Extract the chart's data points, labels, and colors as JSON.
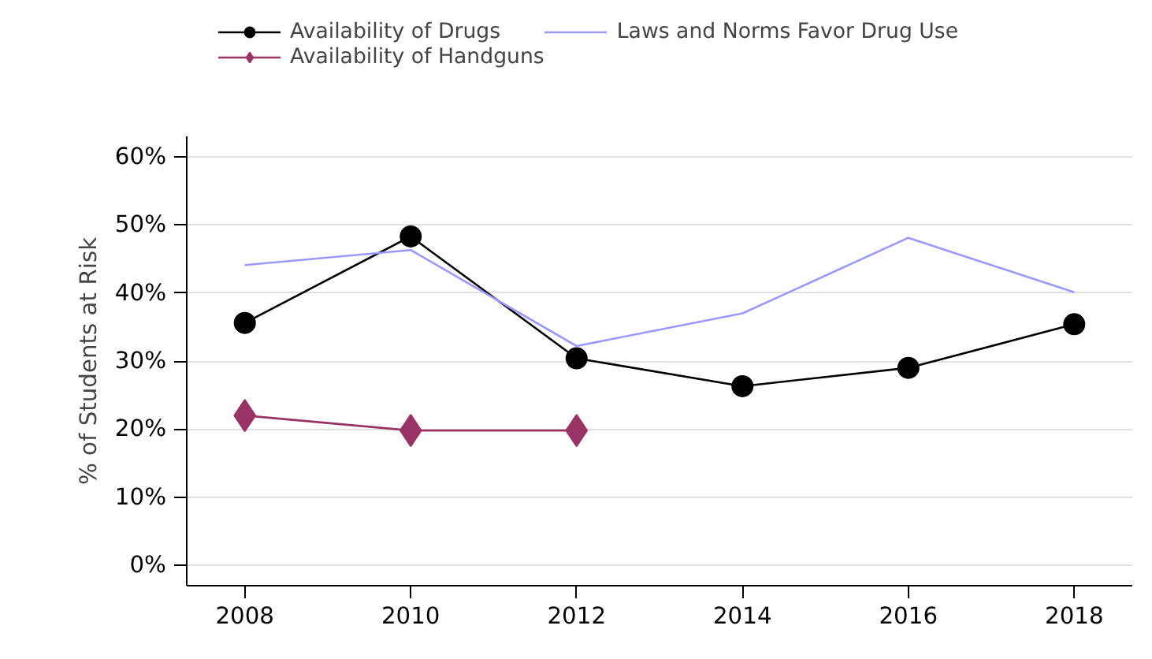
{
  "chart_data": {
    "type": "line",
    "ylabel": "% of Students at Risk",
    "x": [
      2008,
      2010,
      2012,
      2014,
      2016,
      2018
    ],
    "series": [
      {
        "name": "Availability of Drugs",
        "color": "#000000",
        "marker": "circle",
        "values": [
          35.6,
          48.3,
          30.4,
          26.3,
          29.0,
          35.4
        ]
      },
      {
        "name": "Availability of Handguns",
        "color": "#993366",
        "marker": "diamond",
        "values": [
          22.0,
          19.8,
          19.8,
          null,
          null,
          null
        ]
      },
      {
        "name": "Laws and Norms Favor Drug Use",
        "color": "#9999ff",
        "marker": "none",
        "values": [
          44.1,
          46.3,
          32.2,
          37.0,
          48.1,
          40.1
        ]
      }
    ],
    "xlim": [
      2007.3,
      2018.7
    ],
    "xticks": [
      2008,
      2010,
      2012,
      2014,
      2016,
      2018
    ],
    "ylim": [
      -3,
      63
    ],
    "yticks": [
      {
        "value": 0,
        "label": "0%"
      },
      {
        "value": 10,
        "label": "10%"
      },
      {
        "value": 20,
        "label": "20%"
      },
      {
        "value": 30,
        "label": "30%"
      },
      {
        "value": 40,
        "label": "40%"
      },
      {
        "value": 50,
        "label": "50%"
      },
      {
        "value": 60,
        "label": "60%"
      }
    ],
    "grid": "y",
    "legend": "top",
    "line_style": "solid"
  }
}
